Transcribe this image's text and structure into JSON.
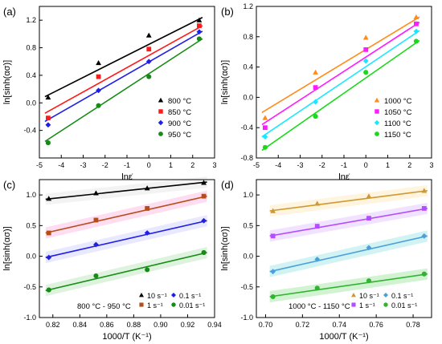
{
  "figure": {
    "panels": [
      {
        "id": "a",
        "label": "(a)",
        "xlabel": "lnε̇",
        "ylabel": "ln[sinh(ασ)]",
        "xlim": [
          -5,
          3
        ],
        "ylim": [
          -0.8,
          1.4
        ],
        "xticks": [
          -5,
          -4,
          -3,
          -2,
          -1,
          0,
          1,
          2,
          3
        ],
        "yticks": [
          -0.4,
          0,
          0.4,
          0.8,
          1.2
        ],
        "xtick_labels": [
          "-5",
          "-4",
          "-3",
          "-2",
          "-1",
          "0",
          "1",
          "2",
          "3"
        ],
        "ytick_labels": [
          "-0.4",
          "0.0",
          "0.4",
          "0.8",
          "1.2"
        ],
        "legend_position": "bottom-right",
        "note": ""
      },
      {
        "id": "b",
        "label": "(b)",
        "xlabel": "lnε̇",
        "ylabel": "ln[sinh(ασ)]",
        "xlim": [
          -5,
          3
        ],
        "ylim": [
          -0.8,
          1.2
        ],
        "xticks": [
          -5,
          -4,
          -3,
          -2,
          -1,
          0,
          1,
          2,
          3
        ],
        "yticks": [
          -0.8,
          -0.4,
          0,
          0.4,
          0.8,
          1.2
        ],
        "xtick_labels": [
          "-5",
          "-4",
          "-3",
          "-2",
          "-1",
          "0",
          "1",
          "2",
          "3"
        ],
        "ytick_labels": [
          "-0.8",
          "-0.4",
          "0.0",
          "0.4",
          "0.8",
          "1.2"
        ],
        "legend_position": "bottom-right",
        "note": ""
      },
      {
        "id": "c",
        "label": "(c)",
        "xlabel": "1000/T (K⁻¹)",
        "ylabel": "ln[sinh(ασ)]",
        "xlim": [
          0.81,
          0.94
        ],
        "ylim": [
          -1.0,
          1.25
        ],
        "xticks": [
          0.82,
          0.84,
          0.86,
          0.88,
          0.9,
          0.92,
          0.94
        ],
        "yticks": [
          -1.0,
          -0.5,
          0,
          0.5,
          1.0
        ],
        "xtick_labels": [
          "0.82",
          "0.84",
          "0.86",
          "0.88",
          "0.90",
          "0.92",
          "0.94"
        ],
        "ytick_labels": [
          "-1.0",
          "-0.5",
          "0.0",
          "0.5",
          "1.0"
        ],
        "legend_position": "bottom-right",
        "note": "800 °C - 950 °C"
      },
      {
        "id": "d",
        "label": "(d)",
        "xlabel": "1000/T (K⁻¹)",
        "ylabel": "ln[sinh(ασ)]",
        "xlim": [
          0.695,
          0.79
        ],
        "ylim": [
          -1.0,
          1.25
        ],
        "xticks": [
          0.7,
          0.72,
          0.74,
          0.76,
          0.78
        ],
        "yticks": [
          -1.0,
          -0.5,
          0,
          0.5,
          1.0
        ],
        "xtick_labels": [
          "0.70",
          "0.72",
          "0.74",
          "0.76",
          "0.78"
        ],
        "ytick_labels": [
          "-1.0",
          "-0.5",
          "0.0",
          "0.5",
          "1.0"
        ],
        "legend_position": "bottom-right",
        "note": "1000 °C - 1150 °C"
      }
    ]
  },
  "chart_data": [
    {
      "panel": "a",
      "type": "scatter",
      "x": [
        -4.6,
        -2.3,
        0,
        2.3
      ],
      "series": [
        {
          "name": "800 °C",
          "marker": "triangle",
          "color": "#000000",
          "values": [
            0.08,
            0.58,
            0.98,
            1.2
          ],
          "fit": [
            0.09,
            1.24
          ]
        },
        {
          "name": "850 °C",
          "marker": "square",
          "color": "#ff1a1a",
          "values": [
            -0.22,
            0.38,
            0.78,
            1.12
          ],
          "fit": [
            -0.15,
            1.12
          ]
        },
        {
          "name": "900 °C",
          "marker": "diamond",
          "color": "#1f1fe6",
          "values": [
            -0.32,
            0.18,
            0.6,
            1.03
          ],
          "fit": [
            -0.27,
            1.04
          ]
        },
        {
          "name": "950 °C",
          "marker": "circle",
          "color": "#168c16",
          "values": [
            -0.58,
            -0.04,
            0.38,
            0.93
          ],
          "fit": [
            -0.56,
            0.93
          ]
        }
      ]
    },
    {
      "panel": "b",
      "type": "scatter",
      "x": [
        -4.6,
        -2.3,
        0,
        2.3
      ],
      "series": [
        {
          "name": "1000 °C",
          "marker": "triangle",
          "color": "#ff8c1a",
          "values": [
            -0.27,
            0.33,
            0.79,
            1.06
          ],
          "fit": [
            -0.2,
            1.06
          ]
        },
        {
          "name": "1050 °C",
          "marker": "square",
          "color": "#ff1aff",
          "values": [
            -0.4,
            0.13,
            0.63,
            0.97
          ],
          "fit": [
            -0.36,
            0.99
          ]
        },
        {
          "name": "1100 °C",
          "marker": "diamond",
          "color": "#1ae6ff",
          "values": [
            -0.52,
            -0.06,
            0.48,
            0.87
          ],
          "fit": [
            -0.52,
            0.88
          ]
        },
        {
          "name": "1150 °C",
          "marker": "circle",
          "color": "#1ad91a",
          "values": [
            -0.66,
            -0.25,
            0.33,
            0.74
          ],
          "fit": [
            -0.7,
            0.75
          ]
        }
      ]
    },
    {
      "panel": "c",
      "type": "scatter",
      "x": [
        0.817,
        0.852,
        0.89,
        0.932
      ],
      "series": [
        {
          "name": "10 s⁻¹",
          "marker": "triangle",
          "color": "#000000",
          "band": "#f2f2f2",
          "values": [
            0.94,
            1.03,
            1.11,
            1.2
          ],
          "fit": [
            0.93,
            1.21
          ]
        },
        {
          "name": "1 s⁻¹",
          "marker": "square",
          "color": "#b34d1a",
          "band": "#ffd9f0",
          "values": [
            0.38,
            0.59,
            0.78,
            0.98
          ],
          "fit": [
            0.38,
            0.98
          ]
        },
        {
          "name": "0.1 s⁻¹",
          "marker": "diamond",
          "color": "#1f1fe6",
          "band": "#e6e6ff",
          "values": [
            -0.02,
            0.19,
            0.38,
            0.58
          ],
          "fit": [
            -0.02,
            0.58
          ]
        },
        {
          "name": "0.01 s⁻¹",
          "marker": "circle",
          "color": "#168c16",
          "band": "#d9f2d9",
          "values": [
            -0.55,
            -0.32,
            -0.22,
            0.06
          ],
          "fit": [
            -0.56,
            0.06
          ]
        }
      ]
    },
    {
      "panel": "d",
      "type": "scatter",
      "x": [
        0.704,
        0.728,
        0.756,
        0.786
      ],
      "series": [
        {
          "name": "10 s⁻¹",
          "marker": "triangle",
          "color": "#cc9933",
          "band": "#fff3d9",
          "values": [
            0.74,
            0.86,
            0.98,
            1.07
          ],
          "fit": [
            0.74,
            1.07
          ]
        },
        {
          "name": "1 s⁻¹",
          "marker": "square",
          "color": "#b34dff",
          "band": "#f0e0ff",
          "values": [
            0.33,
            0.49,
            0.62,
            0.78
          ],
          "fit": [
            0.33,
            0.78
          ]
        },
        {
          "name": "0.1 s⁻¹",
          "marker": "diamond",
          "color": "#4d9fd9",
          "band": "#ccf2f2",
          "values": [
            -0.25,
            -0.05,
            0.14,
            0.33
          ],
          "fit": [
            -0.25,
            0.33
          ]
        },
        {
          "name": "0.01 s⁻¹",
          "marker": "circle",
          "color": "#33b333",
          "band": "#ccf2cc",
          "values": [
            -0.66,
            -0.52,
            -0.4,
            -0.29
          ],
          "fit": [
            -0.66,
            -0.29
          ]
        }
      ]
    }
  ]
}
